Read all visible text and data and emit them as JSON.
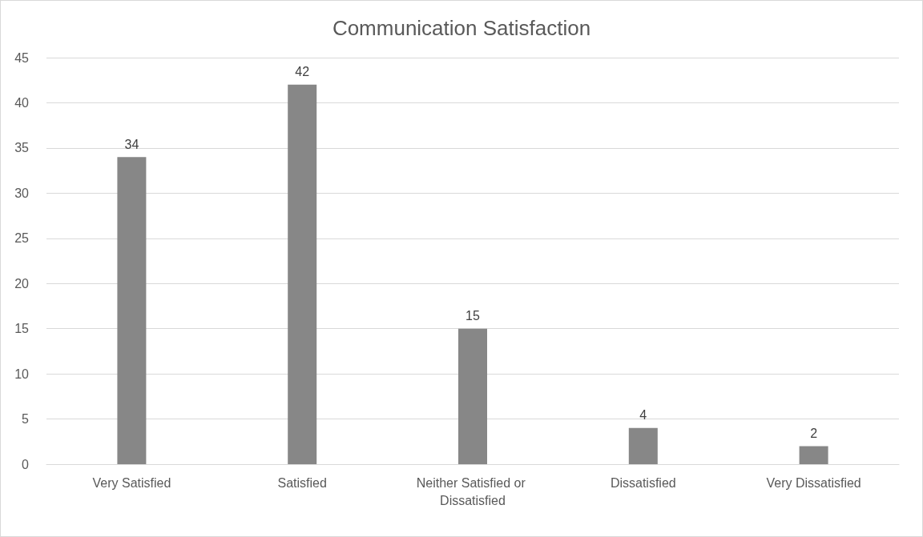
{
  "chart_data": {
    "type": "bar",
    "title": "Communication Satisfaction",
    "categories": [
      "Very Satisfied",
      "Satisfied",
      "Neither Satisfied or Dissatisfied",
      "Dissatisfied",
      "Very Dissatisfied"
    ],
    "values": [
      34,
      42,
      15,
      4,
      2
    ],
    "color": "#878787",
    "ylim": [
      0,
      45
    ],
    "yticks": [
      0,
      5,
      10,
      15,
      20,
      25,
      30,
      35,
      40,
      45
    ],
    "grid": "y",
    "data_labels": true
  }
}
